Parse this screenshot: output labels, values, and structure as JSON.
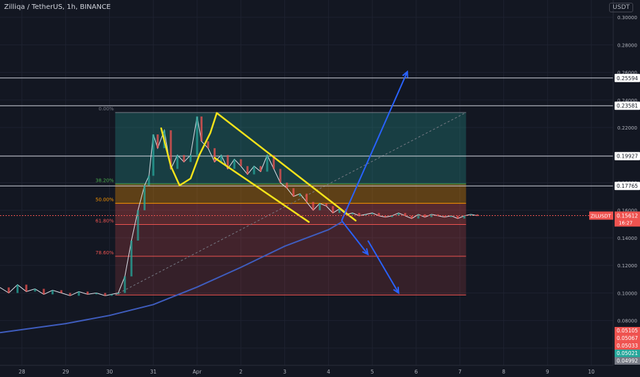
{
  "header": {
    "title": "Zilliqa / TetherUS, 1h, BINANCE",
    "currency": "USDT"
  },
  "colors": {
    "bg": "#131722",
    "up": "#26a69a",
    "down": "#ef5350",
    "ma": "#3f5dbf",
    "pattern": "#f5e31a",
    "arrows": "#2962ff"
  },
  "chart_data": {
    "type": "line",
    "title": "Zilliqa / TetherUS, 1h, BINANCE",
    "xlabel": "",
    "ylabel": "",
    "x_ticks": [
      {
        "label": "28",
        "x": 28
      },
      {
        "label": "29",
        "x": 29
      },
      {
        "label": "30",
        "x": 30
      },
      {
        "label": "31",
        "x": 31
      },
      {
        "label": "Apr",
        "x": 32
      },
      {
        "label": "2",
        "x": 33
      },
      {
        "label": "3",
        "x": 34
      },
      {
        "label": "4",
        "x": 35
      },
      {
        "label": "5",
        "x": 36
      },
      {
        "label": "6",
        "x": 37
      },
      {
        "label": "7",
        "x": 38
      },
      {
        "label": "8",
        "x": 39
      },
      {
        "label": "9",
        "x": 40
      },
      {
        "label": "10",
        "x": 41
      }
    ],
    "x_range": [
      27.5,
      41.5
    ],
    "y_ticks": [
      "0.30000",
      "0.28000",
      "0.26000",
      "0.24000",
      "0.22000",
      "0.20000",
      "0.18000",
      "0.16000",
      "0.14000",
      "0.12000",
      "0.10000",
      "0.08000",
      "0.06000"
    ],
    "ylim": [
      0.0475,
      0.3125
    ],
    "price_line": {
      "x": [
        27.5,
        27.7,
        27.9,
        28.1,
        28.3,
        28.5,
        28.7,
        28.9,
        29.1,
        29.3,
        29.5,
        29.7,
        29.9,
        30.05,
        30.2,
        30.35,
        30.5,
        30.65,
        30.8,
        30.9,
        31.0,
        31.1,
        31.25,
        31.4,
        31.55,
        31.7,
        31.85,
        32.0,
        32.1,
        32.25,
        32.4,
        32.55,
        32.7,
        32.85,
        33.0,
        33.15,
        33.3,
        33.45,
        33.6,
        33.75,
        33.9,
        34.05,
        34.2,
        34.35,
        34.5,
        34.65,
        34.8,
        34.95,
        35.1,
        35.25,
        35.4,
        35.55,
        35.7,
        35.85,
        36.0,
        36.15,
        36.3,
        36.45,
        36.6,
        36.75,
        36.9,
        37.05,
        37.2,
        37.35,
        37.5,
        37.65,
        37.8,
        37.95,
        38.1,
        38.25,
        38.4
      ],
      "y": [
        0.104,
        0.1,
        0.106,
        0.101,
        0.103,
        0.099,
        0.102,
        0.1,
        0.098,
        0.101,
        0.099,
        0.1,
        0.098,
        0.099,
        0.1,
        0.112,
        0.138,
        0.16,
        0.178,
        0.185,
        0.215,
        0.205,
        0.218,
        0.19,
        0.2,
        0.195,
        0.2,
        0.228,
        0.21,
        0.205,
        0.195,
        0.2,
        0.19,
        0.197,
        0.192,
        0.186,
        0.192,
        0.188,
        0.2,
        0.19,
        0.18,
        0.176,
        0.17,
        0.172,
        0.166,
        0.16,
        0.165,
        0.163,
        0.158,
        0.161,
        0.157,
        0.158,
        0.156,
        0.157,
        0.158,
        0.156,
        0.155,
        0.156,
        0.158,
        0.156,
        0.154,
        0.157,
        0.155,
        0.157,
        0.156,
        0.155,
        0.156,
        0.154,
        0.156,
        0.157,
        0.156
      ]
    },
    "moving_average": {
      "x": [
        27.5,
        29,
        30,
        31,
        32,
        33,
        34,
        35,
        35.3
      ],
      "y": [
        0.0712,
        0.0778,
        0.0837,
        0.0916,
        0.1043,
        0.1186,
        0.1339,
        0.1459,
        0.1514
      ]
    },
    "white_lines": [
      {
        "price": 0.25594,
        "label": "0.25594"
      },
      {
        "price": 0.23581,
        "label": "0.23581"
      },
      {
        "price": 0.19927,
        "label": "0.19927"
      },
      {
        "price": 0.17765,
        "label": "0.17765"
      }
    ],
    "fib": {
      "x_start": 30.13,
      "x_end": 38.14,
      "price_top": 0.2309,
      "price_bottom": 0.0985,
      "levels": [
        {
          "label": "0.00%",
          "price": 0.2309
        },
        {
          "label": "38.20%",
          "price": 0.1791
        },
        {
          "label": "50.00%",
          "price": 0.165
        },
        {
          "label": "61.80%",
          "price": 0.1497
        },
        {
          "label": "78.60%",
          "price": 0.1266
        }
      ]
    },
    "current": {
      "label": "ZILUSDT",
      "price": 0.15612,
      "price_label": "0.15612",
      "countdown": "16:27"
    },
    "bottom_tags": [
      {
        "label": "0.05105",
        "color": "#ef5350"
      },
      {
        "label": "0.05067",
        "color": "#ef5350"
      },
      {
        "label": "0.05033",
        "color": "#ef5350"
      },
      {
        "label": "0.05021",
        "color": "#26a69a"
      },
      {
        "label": "0.04992",
        "color": "#787b86"
      }
    ],
    "pattern": {
      "channel_upper": {
        "x": [
          32.45,
          35.62
        ],
        "y": [
          0.2305,
          0.1525
        ]
      },
      "channel_lower": {
        "x": [
          32.4,
          34.55
        ],
        "y": [
          0.198,
          0.1515
        ]
      },
      "cup_left": {
        "x": [
          31.18,
          31.4,
          31.6,
          31.85,
          32.05
        ],
        "y": [
          0.2195,
          0.192,
          0.178,
          0.183,
          0.2
        ]
      },
      "cup_right": {
        "x": [
          32.05,
          32.3,
          32.45
        ],
        "y": [
          0.2,
          0.216,
          0.2305
        ]
      }
    },
    "arrows": [
      {
        "x": [
          35.3,
          36.8
        ],
        "y": [
          0.1525,
          0.2605
        ]
      },
      {
        "x": [
          35.3,
          35.9
        ],
        "y": [
          0.1525,
          0.128
        ]
      },
      {
        "x": [
          35.9,
          36.6
        ],
        "y": [
          0.138,
          0.1
        ]
      }
    ]
  }
}
